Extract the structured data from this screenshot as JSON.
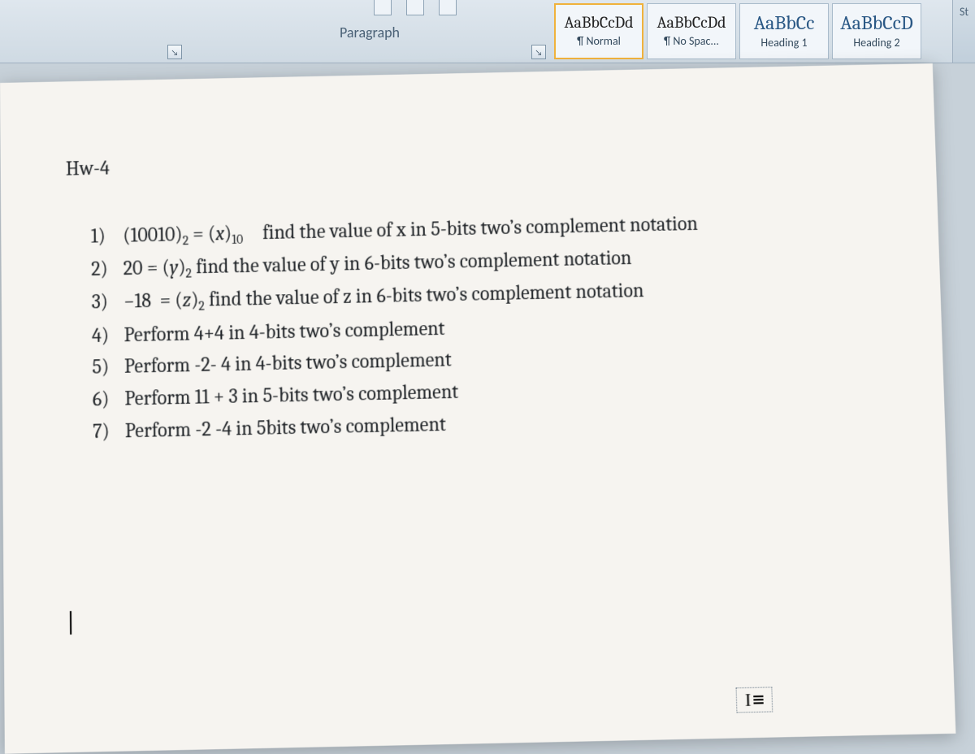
{
  "ribbon": {
    "paragraph_label": "Paragraph",
    "styles": [
      {
        "sample": "AaBbCcDd",
        "name": "¶ Normal",
        "sample_class": "",
        "selected": true
      },
      {
        "sample": "AaBbCcDd",
        "name": "¶ No Spac...",
        "sample_class": "",
        "selected": false
      },
      {
        "sample": "AaBbCc",
        "name": "Heading 1",
        "sample_class": "big",
        "selected": false
      },
      {
        "sample": "AaBbCcD",
        "name": "Heading 2",
        "sample_class": "big",
        "selected": false
      }
    ],
    "right_edge": "St"
  },
  "document": {
    "title": "Hw-4",
    "problems_html": [
      "(10010)<sub>2</sub> = (<span class=\"ital\">x</span>)<sub>10</sub> find the value of x in 5-bits two’s complement notation",
      "20 = (<span class=\"ital\">y</span>)<sub>2</sub> find the value of y in 6-bits two’s complement notation",
      "−18 &nbsp;= (<span class=\"ital\">z</span>)<sub>2</sub> find the value of z in 6-bits two’s complement notation",
      "Perform 4+4 in 4-bits two’s complement",
      "Perform -2- 4 in 4-bits two’s complement",
      "Perform 11 + 3 in 5-bits two’s complement",
      "Perform -2 -4 in 5bits two’s complement"
    ]
  },
  "colors": {
    "page_bg": "#f6f4f0",
    "workspace_bg": "#c7d1d9",
    "heading_blue": "#2a5885"
  }
}
